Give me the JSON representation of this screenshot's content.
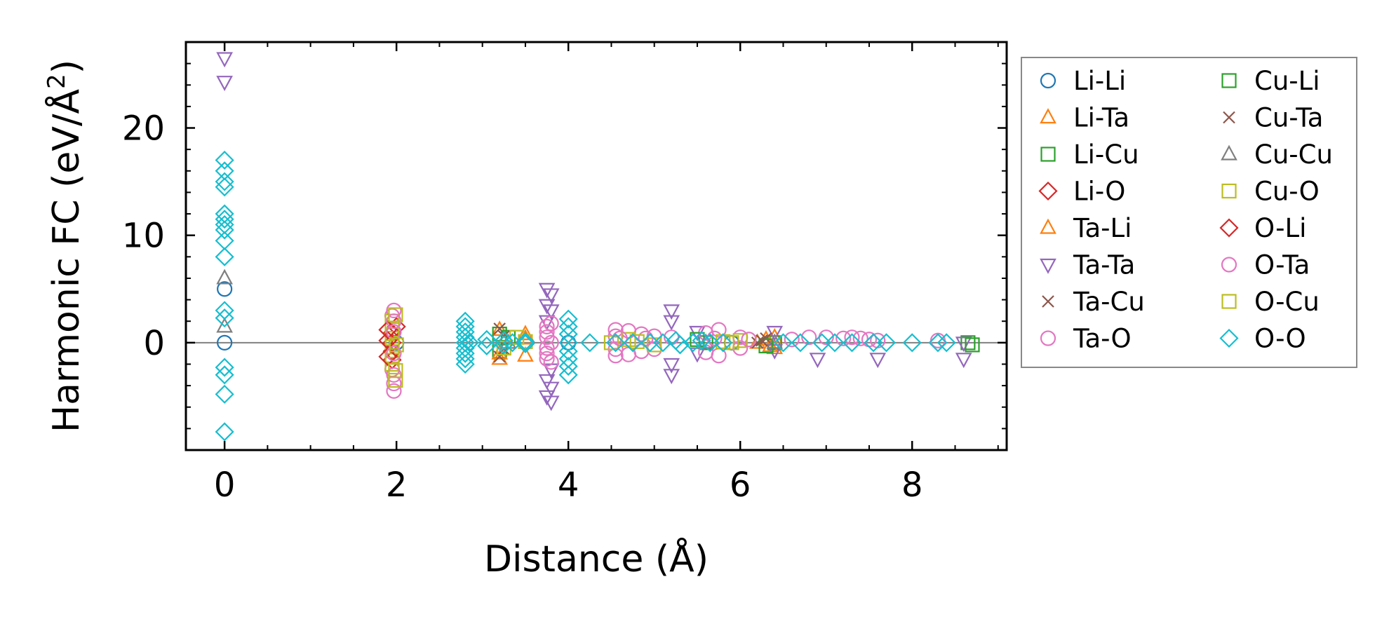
{
  "chart_data": {
    "type": "scatter",
    "xlabel": "Distance (Å)",
    "ylabel": "Harmonic FC (eV/Å²)",
    "ylabel_main": "Harmonic FC (eV/Å",
    "ylabel_sup": "2",
    "ylabel_close": ")",
    "xlim": [
      -0.45,
      9.1
    ],
    "ylim": [
      -10.0,
      28.0
    ],
    "xticks": [
      "0",
      "2",
      "4",
      "6",
      "8"
    ],
    "yticks": [
      "0",
      "10",
      "20"
    ],
    "xtick_values": [
      0,
      2,
      4,
      6,
      8
    ],
    "ytick_values": [
      0,
      10,
      20
    ],
    "zero_line": true,
    "legend_position": "outside-right",
    "series": [
      {
        "name": "Li-Li",
        "marker": "circle",
        "color": "#1f77b4",
        "points": [
          [
            0,
            0
          ],
          [
            0,
            5
          ],
          [
            2,
            0
          ],
          [
            4,
            0
          ],
          [
            5.9,
            0
          ]
        ]
      },
      {
        "name": "Li-Ta",
        "marker": "triangle-up",
        "color": "#ff7f0e",
        "points": [
          [
            3.2,
            -1.5
          ],
          [
            3.2,
            1.2
          ],
          [
            3.5,
            -1.2
          ],
          [
            3.5,
            0.8
          ],
          [
            6.2,
            0
          ],
          [
            6.4,
            0.5
          ],
          [
            6.4,
            -0.5
          ]
        ]
      },
      {
        "name": "Li-Cu",
        "marker": "square",
        "color": "#2ca02c",
        "points": [
          [
            3.2,
            -0.8
          ],
          [
            3.2,
            0.8
          ],
          [
            5.6,
            0
          ],
          [
            6.4,
            0
          ],
          [
            8.65,
            0
          ]
        ]
      },
      {
        "name": "Li-O",
        "marker": "diamond",
        "color": "#d62728",
        "points": [
          [
            1.95,
            0
          ],
          [
            1.95,
            -0.8
          ],
          [
            1.95,
            0.9
          ],
          [
            1.95,
            -1.6
          ],
          [
            2.0,
            1.5
          ]
        ]
      },
      {
        "name": "Ta-Li",
        "marker": "triangle-up",
        "color": "#ff7f0e",
        "points": [
          [
            3.2,
            -1.0
          ],
          [
            3.5,
            0.4
          ],
          [
            6.3,
            0.3
          ],
          [
            6.35,
            -0.3
          ]
        ]
      },
      {
        "name": "Ta-Ta",
        "marker": "triangle-down",
        "color": "#9467bd",
        "points": [
          [
            0,
            26.5
          ],
          [
            0,
            24.3
          ],
          [
            3.75,
            5
          ],
          [
            3.8,
            4.5
          ],
          [
            3.75,
            3.5
          ],
          [
            3.8,
            3
          ],
          [
            3.75,
            2
          ],
          [
            3.8,
            -2.5
          ],
          [
            3.75,
            -3.5
          ],
          [
            3.8,
            -4.2
          ],
          [
            3.75,
            -5
          ],
          [
            3.8,
            -5.5
          ],
          [
            5.2,
            3
          ],
          [
            5.2,
            2
          ],
          [
            5.2,
            -2
          ],
          [
            5.2,
            -3
          ],
          [
            5.5,
            -1
          ],
          [
            5.5,
            1
          ],
          [
            6.4,
            1
          ],
          [
            6.4,
            -0.7
          ],
          [
            6.9,
            -1.5
          ],
          [
            7.6,
            -1.5
          ],
          [
            8.6,
            -1.5
          ],
          [
            8.6,
            0
          ]
        ]
      },
      {
        "name": "Ta-Cu",
        "marker": "x",
        "color": "#8c564b",
        "points": [
          [
            3.2,
            1.3
          ],
          [
            3.2,
            -1.3
          ],
          [
            6.2,
            0
          ],
          [
            6.3,
            0.4
          ]
        ]
      },
      {
        "name": "Ta-O",
        "marker": "circle",
        "color": "#e377c2",
        "points": [
          [
            1.95,
            2.5
          ],
          [
            1.95,
            -2.5
          ],
          [
            3.75,
            1.5
          ],
          [
            3.75,
            1.0
          ],
          [
            3.75,
            0.5
          ],
          [
            3.75,
            -0.5
          ],
          [
            3.75,
            -1.0
          ],
          [
            3.75,
            -1.5
          ],
          [
            3.8,
            0
          ],
          [
            4.55,
            1.2
          ],
          [
            4.55,
            0.6
          ],
          [
            4.55,
            -0.6
          ],
          [
            4.55,
            -1.2
          ],
          [
            4.7,
            1.1
          ],
          [
            4.7,
            -1.1
          ],
          [
            4.85,
            0.8
          ],
          [
            4.85,
            -0.8
          ],
          [
            5.0,
            0.6
          ],
          [
            5.0,
            -0.6
          ],
          [
            5.6,
            0.9
          ],
          [
            5.6,
            -0.9
          ],
          [
            5.75,
            1.2
          ],
          [
            5.75,
            -1.2
          ],
          [
            6.0,
            0.5
          ],
          [
            6.0,
            -0.5
          ],
          [
            6.8,
            0.5
          ],
          [
            7.0,
            0.5
          ],
          [
            7.3,
            0.5
          ],
          [
            7.5,
            0.3
          ]
        ]
      },
      {
        "name": "Cu-Li",
        "marker": "square",
        "color": "#2ca02c",
        "points": [
          [
            3.3,
            0.5
          ],
          [
            5.5,
            0.3
          ],
          [
            6.3,
            -0.3
          ],
          [
            8.7,
            -0.2
          ]
        ]
      },
      {
        "name": "Cu-Ta",
        "marker": "x",
        "color": "#8c564b",
        "points": [
          [
            3.25,
            0.6
          ],
          [
            3.25,
            -0.6
          ],
          [
            6.25,
            0.2
          ]
        ]
      },
      {
        "name": "Cu-Cu",
        "marker": "triangle-up",
        "color": "#7f7f7f",
        "points": [
          [
            0,
            6
          ],
          [
            0,
            1.5
          ],
          [
            3.3,
            0
          ],
          [
            5.6,
            0
          ],
          [
            6.4,
            0
          ]
        ]
      },
      {
        "name": "Cu-O",
        "marker": "square",
        "color": "#bcbd22",
        "points": [
          [
            1.95,
            -2
          ],
          [
            1.95,
            -1.2
          ],
          [
            1.95,
            -0.4
          ],
          [
            1.95,
            0.4
          ],
          [
            1.95,
            1.2
          ],
          [
            1.95,
            2.0
          ],
          [
            3.25,
            -0.5
          ],
          [
            3.4,
            0.5
          ],
          [
            4.5,
            0
          ],
          [
            4.7,
            0.3
          ],
          [
            5.0,
            -0.2
          ],
          [
            5.9,
            0
          ],
          [
            6.0,
            0.2
          ]
        ]
      },
      {
        "name": "O-Li",
        "marker": "diamond",
        "color": "#d62728",
        "points": [
          [
            1.9,
            -1.3
          ],
          [
            1.9,
            1.2
          ],
          [
            1.9,
            0.2
          ]
        ]
      },
      {
        "name": "O-Ta",
        "marker": "circle",
        "color": "#e377c2",
        "points": [
          [
            1.97,
            3
          ],
          [
            1.97,
            2
          ],
          [
            1.97,
            -3
          ],
          [
            1.97,
            -3.8
          ],
          [
            1.97,
            -4.5
          ],
          [
            1.97,
            1
          ],
          [
            1.97,
            -1
          ],
          [
            3.8,
            1.8
          ],
          [
            3.8,
            -1.8
          ],
          [
            4.6,
            0.4
          ],
          [
            4.9,
            0.4
          ],
          [
            5.2,
            0.5
          ],
          [
            5.7,
            0.4
          ],
          [
            6.1,
            0.3
          ],
          [
            6.6,
            0.3
          ],
          [
            7.2,
            0.4
          ],
          [
            7.4,
            0.4
          ],
          [
            7.6,
            0.2
          ],
          [
            8.3,
            0.2
          ]
        ]
      },
      {
        "name": "O-Cu",
        "marker": "square",
        "color": "#bcbd22",
        "points": [
          [
            1.99,
            2.6
          ],
          [
            1.99,
            -2.6
          ],
          [
            1.99,
            -3.5
          ],
          [
            2.0,
            -0.2
          ],
          [
            3.5,
            0.1
          ],
          [
            4.8,
            0.1
          ],
          [
            5.8,
            0.1
          ]
        ]
      },
      {
        "name": "O-O",
        "marker": "diamond",
        "color": "#17becf",
        "points": [
          [
            0,
            17
          ],
          [
            0,
            16
          ],
          [
            0,
            15
          ],
          [
            0,
            14.5
          ],
          [
            0,
            12
          ],
          [
            0,
            11.5
          ],
          [
            0,
            11
          ],
          [
            0,
            10.5
          ],
          [
            0,
            9.5
          ],
          [
            0,
            8
          ],
          [
            0,
            3
          ],
          [
            0,
            2.3
          ],
          [
            0,
            -2.3
          ],
          [
            0,
            -3
          ],
          [
            0,
            -4.8
          ],
          [
            0,
            -8.3
          ],
          [
            2.8,
            2
          ],
          [
            2.8,
            1.5
          ],
          [
            2.8,
            1
          ],
          [
            2.8,
            0.5
          ],
          [
            2.8,
            0
          ],
          [
            2.8,
            -0.5
          ],
          [
            2.8,
            -1
          ],
          [
            2.8,
            -1.5
          ],
          [
            2.8,
            -2
          ],
          [
            2.85,
            0
          ],
          [
            3.05,
            0.3
          ],
          [
            3.05,
            -0.3
          ],
          [
            3.25,
            0.2
          ],
          [
            3.25,
            -0.2
          ],
          [
            3.35,
            0
          ],
          [
            3.5,
            0.1
          ],
          [
            3.5,
            -0.1
          ],
          [
            4.0,
            2.2
          ],
          [
            4.0,
            1.5
          ],
          [
            4.0,
            0.8
          ],
          [
            4.0,
            0
          ],
          [
            4.0,
            -0.8
          ],
          [
            4.0,
            -1.5
          ],
          [
            4.0,
            -2.2
          ],
          [
            4.0,
            -3
          ],
          [
            4.25,
            0
          ],
          [
            4.55,
            0
          ],
          [
            4.75,
            0
          ],
          [
            4.95,
            0
          ],
          [
            5.1,
            0
          ],
          [
            5.25,
            0.2
          ],
          [
            5.3,
            -0.2
          ],
          [
            5.45,
            0
          ],
          [
            5.55,
            0.2
          ],
          [
            5.65,
            0
          ],
          [
            5.8,
            0
          ],
          [
            6.5,
            0
          ],
          [
            6.7,
            0
          ],
          [
            6.95,
            0
          ],
          [
            7.1,
            0
          ],
          [
            7.3,
            0
          ],
          [
            7.55,
            0
          ],
          [
            7.7,
            0
          ],
          [
            8.0,
            0
          ],
          [
            8.3,
            0
          ],
          [
            8.4,
            0
          ]
        ]
      }
    ]
  }
}
